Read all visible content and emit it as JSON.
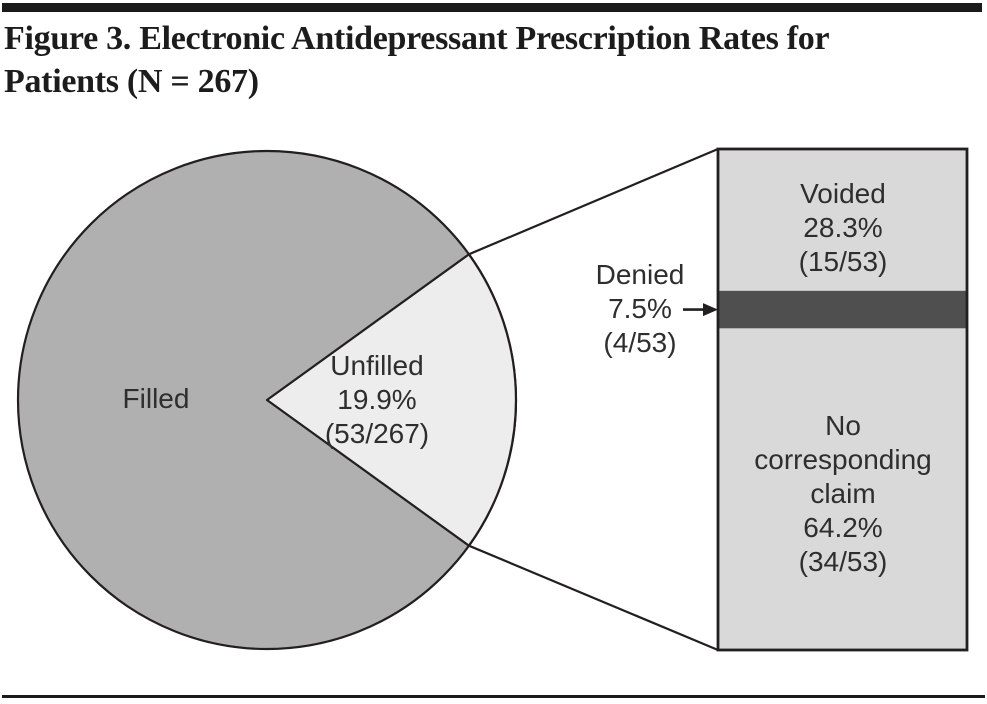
{
  "figure": {
    "title": "Figure 3. Electronic Antidepressant Prescription Rates for\nPatients (N = 267)"
  },
  "colors": {
    "filled_gray": "#B0B0B0",
    "unfilled_gray": "#EDEDED",
    "bar_light_gray": "#D9D9D9",
    "denied_dark_gray": "#4F4F4F",
    "outline": "#221F1F",
    "rule_black": "#1A1A1A"
  },
  "pie": {
    "filled": {
      "label": "Filled"
    },
    "unfilled": {
      "label": "Unfilled",
      "pct": "19.9%",
      "fraction": "(53/267)"
    }
  },
  "breakdown": {
    "voided": {
      "label": "Voided",
      "pct": "28.3%",
      "fraction": "(15/53)"
    },
    "denied": {
      "label": "Denied",
      "pct": "7.5%",
      "fraction": "(4/53)"
    },
    "no_claim": {
      "label": "No corresponding claim",
      "pct": "64.2%",
      "fraction": "(34/53)"
    }
  },
  "chart_data": {
    "type": "pie",
    "title": "Figure 3. Electronic Antidepressant Prescription Rates for Patients (N = 267)",
    "n_total": 267,
    "slices": [
      {
        "label": "Filled",
        "pct": 80.1
      },
      {
        "label": "Unfilled",
        "pct": 19.9,
        "count": 53,
        "fraction_display": "(53/267)"
      }
    ],
    "linked_breakdown": {
      "type": "bar",
      "stacked": true,
      "of_slice": "Unfilled",
      "n": 53,
      "segments": [
        {
          "label": "Voided",
          "pct": 28.3,
          "count": 15,
          "fraction_display": "(15/53)"
        },
        {
          "label": "Denied",
          "pct": 7.5,
          "count": 4,
          "fraction_display": "(4/53)"
        },
        {
          "label": "No corresponding claim",
          "pct": 64.2,
          "count": 34,
          "fraction_display": "(34/53)"
        }
      ]
    },
    "layout_hints": {
      "unfilled_wedge_points_right": true,
      "callout_lines_connect_wedge_to_stacked_bar": true,
      "grid": false,
      "legend": false
    }
  }
}
